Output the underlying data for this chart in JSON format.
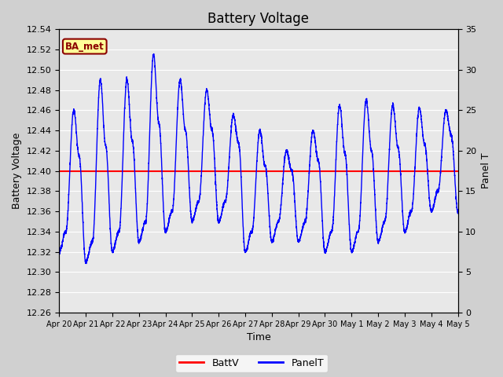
{
  "title": "Battery Voltage",
  "xlabel": "Time",
  "ylabel_left": "Battery Voltage",
  "ylabel_right": "Panel T",
  "ylim_left": [
    12.26,
    12.54
  ],
  "ylim_right": [
    0,
    35
  ],
  "yticks_left": [
    12.26,
    12.28,
    12.3,
    12.32,
    12.34,
    12.36,
    12.38,
    12.4,
    12.42,
    12.44,
    12.46,
    12.48,
    12.5,
    12.52,
    12.54
  ],
  "yticks_right": [
    0,
    5,
    10,
    15,
    20,
    25,
    30,
    35
  ],
  "x_labels": [
    "Apr 20",
    "Apr 21",
    "Apr 22",
    "Apr 23",
    "Apr 24",
    "Apr 25",
    "Apr 26",
    "Apr 27",
    "Apr 28",
    "Apr 29",
    "Apr 30",
    "May 1",
    "May 2",
    "May 3",
    "May 4",
    "May 5"
  ],
  "battv_value": 12.4,
  "panel_color": "blue",
  "battv_color": "red",
  "plot_bg_color": "#e8e8e8",
  "fig_bg_color": "#d0d0d0",
  "grid_color": "white",
  "legend_label_batt": "BattV",
  "legend_label_panel": "PanelT",
  "annotation_text": "BA_met",
  "annotation_bg": "#ffff99",
  "annotation_border": "#8B0000",
  "title_fontsize": 12,
  "axis_fontsize": 9,
  "tick_fontsize": 8,
  "legend_fontsize": 9
}
